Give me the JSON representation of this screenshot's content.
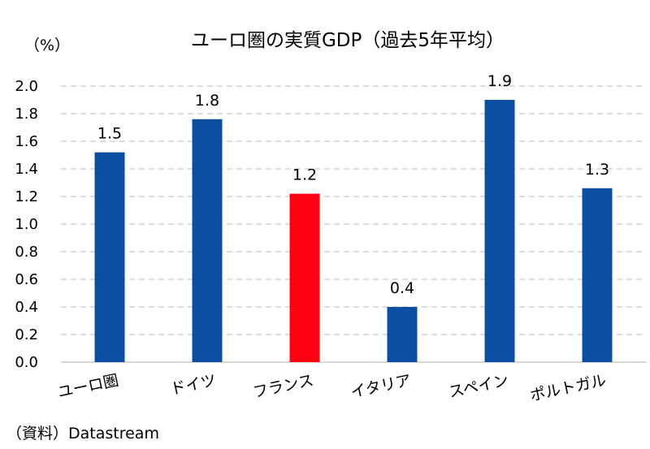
{
  "chart_data": {
    "type": "bar",
    "title": "ユーロ圏の実質GDP（過去5年平均）",
    "unit_label": "（%）",
    "categories": [
      "ユーロ圏",
      "ドイツ",
      "フランス",
      "イタリア",
      "スペイン",
      "ポルトガル"
    ],
    "values": [
      1.52,
      1.76,
      1.22,
      0.4,
      1.9,
      1.26
    ],
    "data_labels": [
      "1.5",
      "1.8",
      "1.2",
      "0.4",
      "1.9",
      "1.3"
    ],
    "highlight_index": 2,
    "colors": {
      "default": "#0b4ea2",
      "highlight": "#ff0013",
      "grid": "#c8c8c8",
      "axis": "#bfbfbf"
    },
    "ylim": [
      0,
      2.0
    ],
    "yticks": [
      "0.0",
      "0.2",
      "0.4",
      "0.6",
      "0.8",
      "1.0",
      "1.2",
      "1.4",
      "1.6",
      "1.8",
      "2.0"
    ],
    "grid": true,
    "legend": "none",
    "source": "（資料）Datastream"
  }
}
